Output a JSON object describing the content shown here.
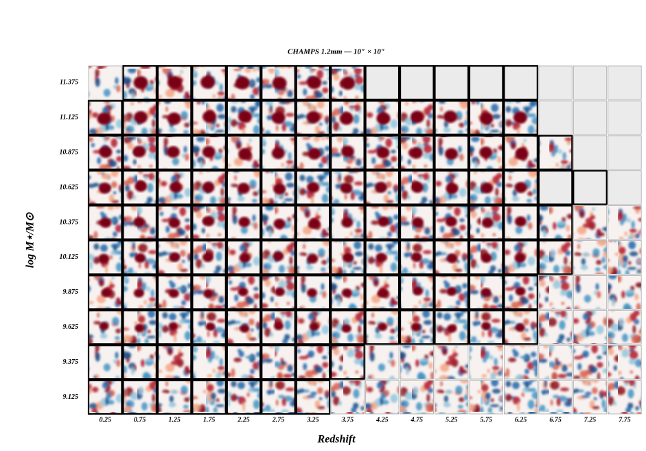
{
  "figure": {
    "title": "CHAMPS 1.2mm — 10″ × 10″",
    "x_label": "Redshift",
    "y_label": "log M⋆/M⊙",
    "x_ticks": [
      "0.25",
      "0.75",
      "1.25",
      "1.75",
      "2.25",
      "2.75",
      "3.25",
      "3.75",
      "4.25",
      "4.75",
      "5.25",
      "5.75",
      "6.25",
      "6.75",
      "7.25",
      "7.75"
    ],
    "y_ticks": [
      "11.375",
      "11.125",
      "10.875",
      "10.625",
      "10.375",
      "10.125",
      "9.875",
      "9.625",
      "9.375",
      "9.125"
    ],
    "cells": [
      [
        "thin",
        "bold",
        "bold",
        "bold",
        "bold",
        "bold",
        "bold",
        "bold",
        "empty-bold",
        "empty-bold",
        "empty-bold",
        "empty-bold",
        "empty-bold",
        "empty",
        "empty",
        "empty"
      ],
      [
        "bold",
        "bold",
        "bold",
        "bold",
        "bold",
        "bold",
        "bold",
        "bold",
        "bold",
        "bold",
        "bold",
        "bold",
        "bold",
        "empty",
        "empty",
        "empty"
      ],
      [
        "bold",
        "bold",
        "bold",
        "bold",
        "bold",
        "bold",
        "bold",
        "bold",
        "bold",
        "bold",
        "bold",
        "bold",
        "bold",
        "bold",
        "empty",
        "empty"
      ],
      [
        "bold",
        "bold",
        "bold",
        "bold",
        "bold",
        "bold",
        "bold",
        "bold",
        "bold",
        "bold",
        "bold",
        "bold",
        "bold",
        "empty-bold",
        "empty-bold",
        "empty"
      ],
      [
        "bold",
        "bold",
        "bold",
        "bold",
        "bold",
        "bold",
        "bold",
        "bold",
        "bold",
        "bold",
        "bold",
        "bold",
        "bold",
        "bold",
        "thin",
        "thin"
      ],
      [
        "bold",
        "bold",
        "bold",
        "bold",
        "bold",
        "bold",
        "bold",
        "bold",
        "bold",
        "bold",
        "bold",
        "bold",
        "bold",
        "bold",
        "thin",
        "thin"
      ],
      [
        "bold",
        "bold",
        "bold",
        "bold",
        "bold",
        "bold",
        "bold",
        "bold",
        "bold",
        "bold",
        "bold",
        "bold",
        "bold",
        "thin",
        "thin",
        "thin"
      ],
      [
        "bold",
        "bold",
        "bold",
        "bold",
        "bold",
        "bold",
        "bold",
        "bold",
        "bold",
        "bold",
        "bold",
        "bold",
        "bold",
        "thin",
        "thin",
        "thin"
      ],
      [
        "bold",
        "bold",
        "bold",
        "bold",
        "bold",
        "bold",
        "bold",
        "bold",
        "thin",
        "thin",
        "thin",
        "thin",
        "thin",
        "thin",
        "thin",
        "thin"
      ],
      [
        "bold",
        "bold",
        "bold",
        "bold",
        "bold",
        "bold",
        "bold",
        "thin",
        "thin",
        "thin",
        "thin",
        "thin",
        "thin",
        "thin",
        "thin",
        "thin"
      ]
    ]
  }
}
